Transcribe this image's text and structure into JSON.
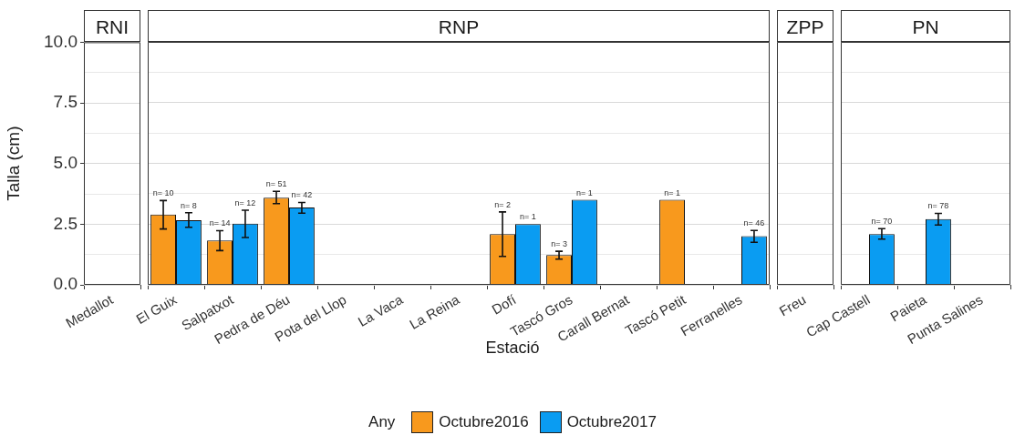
{
  "chart_data": [
    {
      "type": "bar",
      "title": "RNI",
      "ylabel": "Talla (cm)",
      "categories": [
        "Medallot"
      ],
      "series": [
        {
          "color": "#f8991d",
          "values": [
            null
          ],
          "errors": [
            null
          ]
        },
        {
          "color": "#0a9cf2",
          "values": [
            null
          ],
          "errors": [
            null
          ]
        }
      ],
      "ylim": [
        0,
        10
      ],
      "yticks": [
        {
          "value": 0,
          "label": "0.0"
        },
        {
          "value": 1.25,
          "label": null
        },
        {
          "value": 2.5,
          "label": "2.5"
        },
        {
          "value": 3.75,
          "label": null
        },
        {
          "value": 5,
          "label": "5.0"
        },
        {
          "value": 6.25,
          "label": null
        },
        {
          "value": 7.5,
          "label": "7.5"
        },
        {
          "value": 8.75,
          "label": null
        },
        {
          "value": 10,
          "label": "10.0"
        }
      ],
      "grid": "y"
    },
    {
      "type": "bar",
      "title": "RNP",
      "xlabel": "Estació",
      "legend_title": "Any",
      "legend": "bottom",
      "categories": [
        "El Guix",
        "Salpatxot",
        "Pedra de Déu",
        "Pota del Llop",
        "La Vaca",
        "La Reina",
        "Dofí",
        "Tascó Gros",
        "Carall Bernat",
        "Tascó Petit",
        "Ferranelles"
      ],
      "series": [
        {
          "name": "Octubre2016",
          "color": "#f8991d",
          "values": [
            2.89,
            1.83,
            3.59,
            null,
            null,
            null,
            2.09,
            1.23,
            null,
            3.5,
            null
          ],
          "errors": [
            [
              2.3,
              3.47
            ],
            [
              1.41,
              2.23
            ],
            [
              3.34,
              3.85
            ],
            null,
            null,
            null,
            [
              1.17,
              3.0
            ],
            [
              1.06,
              1.38
            ],
            null,
            null,
            null
          ]
        },
        {
          "name": "Octubre2017",
          "color": "#0a9cf2",
          "values": [
            2.66,
            2.52,
            3.18,
            null,
            null,
            null,
            2.5,
            3.5,
            null,
            null,
            2.0
          ],
          "errors": [
            [
              2.37,
              2.97
            ],
            [
              1.95,
              3.07
            ],
            [
              2.95,
              3.39
            ],
            null,
            null,
            null,
            null,
            null,
            null,
            null,
            [
              1.75,
              2.24
            ]
          ]
        }
      ],
      "annotations": [
        {
          "text": "n= 10",
          "x": "El Guix",
          "y": 2.89
        },
        {
          "text": "n= 8",
          "x": "El Guix",
          "y": 2.66
        },
        {
          "text": "n= 14",
          "x": "Salpatxot",
          "y": 1.83
        },
        {
          "text": "n= 12",
          "x": "Salpatxot",
          "y": 2.52
        },
        {
          "text": "n= 51",
          "x": "Pedra de Déu",
          "y": 3.59
        },
        {
          "text": "n= 42",
          "x": "Pedra de Déu",
          "y": 3.18
        },
        "n= 2",
        {
          "text": "n= 1",
          "x": "Dofí",
          "y": 2.5
        },
        {
          "text": "n= 3",
          "x": "Tascó Gros",
          "y": 1.23
        },
        {
          "text": "n= 1",
          "x": "Tascó Gros",
          "y": 3.5
        },
        {
          "text": "n= 1",
          "x": "Tascó Petit",
          "y": 3.5
        },
        {
          "text": "n= 46",
          "x": "Ferranelles",
          "y": 2.0
        }
      ],
      "ylim": [
        0,
        10
      ],
      "yticks": [
        0,
        {
          "value": 1.25,
          "label": null
        },
        2.5,
        {
          "value": 3.75,
          "label": null
        },
        5,
        {
          "value": 6.25,
          "label": null
        },
        7.5,
        {
          "value": 8.75,
          "label": null
        },
        10
      ],
      "tick_labels": "x",
      "grid": "y"
    },
    {
      "type": "bar",
      "title": "ZPP",
      "categories": [
        "Freu"
      ],
      "series": [
        {
          "color": "#f8991d",
          "values": [
            null
          ],
          "errors": [
            null
          ]
        },
        {
          "color": "#0a9cf2",
          "values": [
            null
          ],
          "errors": [
            null
          ]
        }
      ],
      "ylim": [
        0,
        10
      ],
      "yticks": [
        0,
        {
          "value": 1.25,
          "label": null
        },
        2.5,
        {
          "value": 3.75,
          "label": null
        },
        5,
        {
          "value": 6.25,
          "label": null
        },
        7.5,
        {
          "value": 8.75,
          "label": null
        },
        10
      ],
      "tick_labels": "x",
      "grid": "y"
    },
    {
      "type": "bar",
      "title": "PN",
      "categories": [
        "Cap Castell",
        "Paieta",
        "Punta Salines"
      ],
      "series": [
        {
          "color": "#f8991d",
          "values": [
            null,
            null,
            null
          ],
          "errors": [
            null,
            null,
            null
          ]
        },
        {
          "color": "#0a9cf2",
          "values": [
            2.09,
            2.71,
            null
          ],
          "errors": [
            [
              1.88,
              2.31
            ],
            [
              2.46,
              2.94
            ],
            null
          ]
        }
      ],
      "annotations": [
        {
          "text": "n= 70",
          "x": "Cap Castell",
          "y": 2.09
        },
        {
          "text": "n= 78",
          "x": "Paieta",
          "y": 2.71
        }
      ],
      "ylim": [
        0,
        10
      ],
      "yticks": [
        0,
        {
          "value": 1.25,
          "label": null
        },
        2.5,
        {
          "value": 3.75,
          "label": null
        },
        5,
        {
          "value": 6.25,
          "label": null
        },
        7.5,
        {
          "value": 8.75,
          "label": null
        },
        10
      ],
      "tick_labels": "x",
      "grid": "y"
    }
  ]
}
